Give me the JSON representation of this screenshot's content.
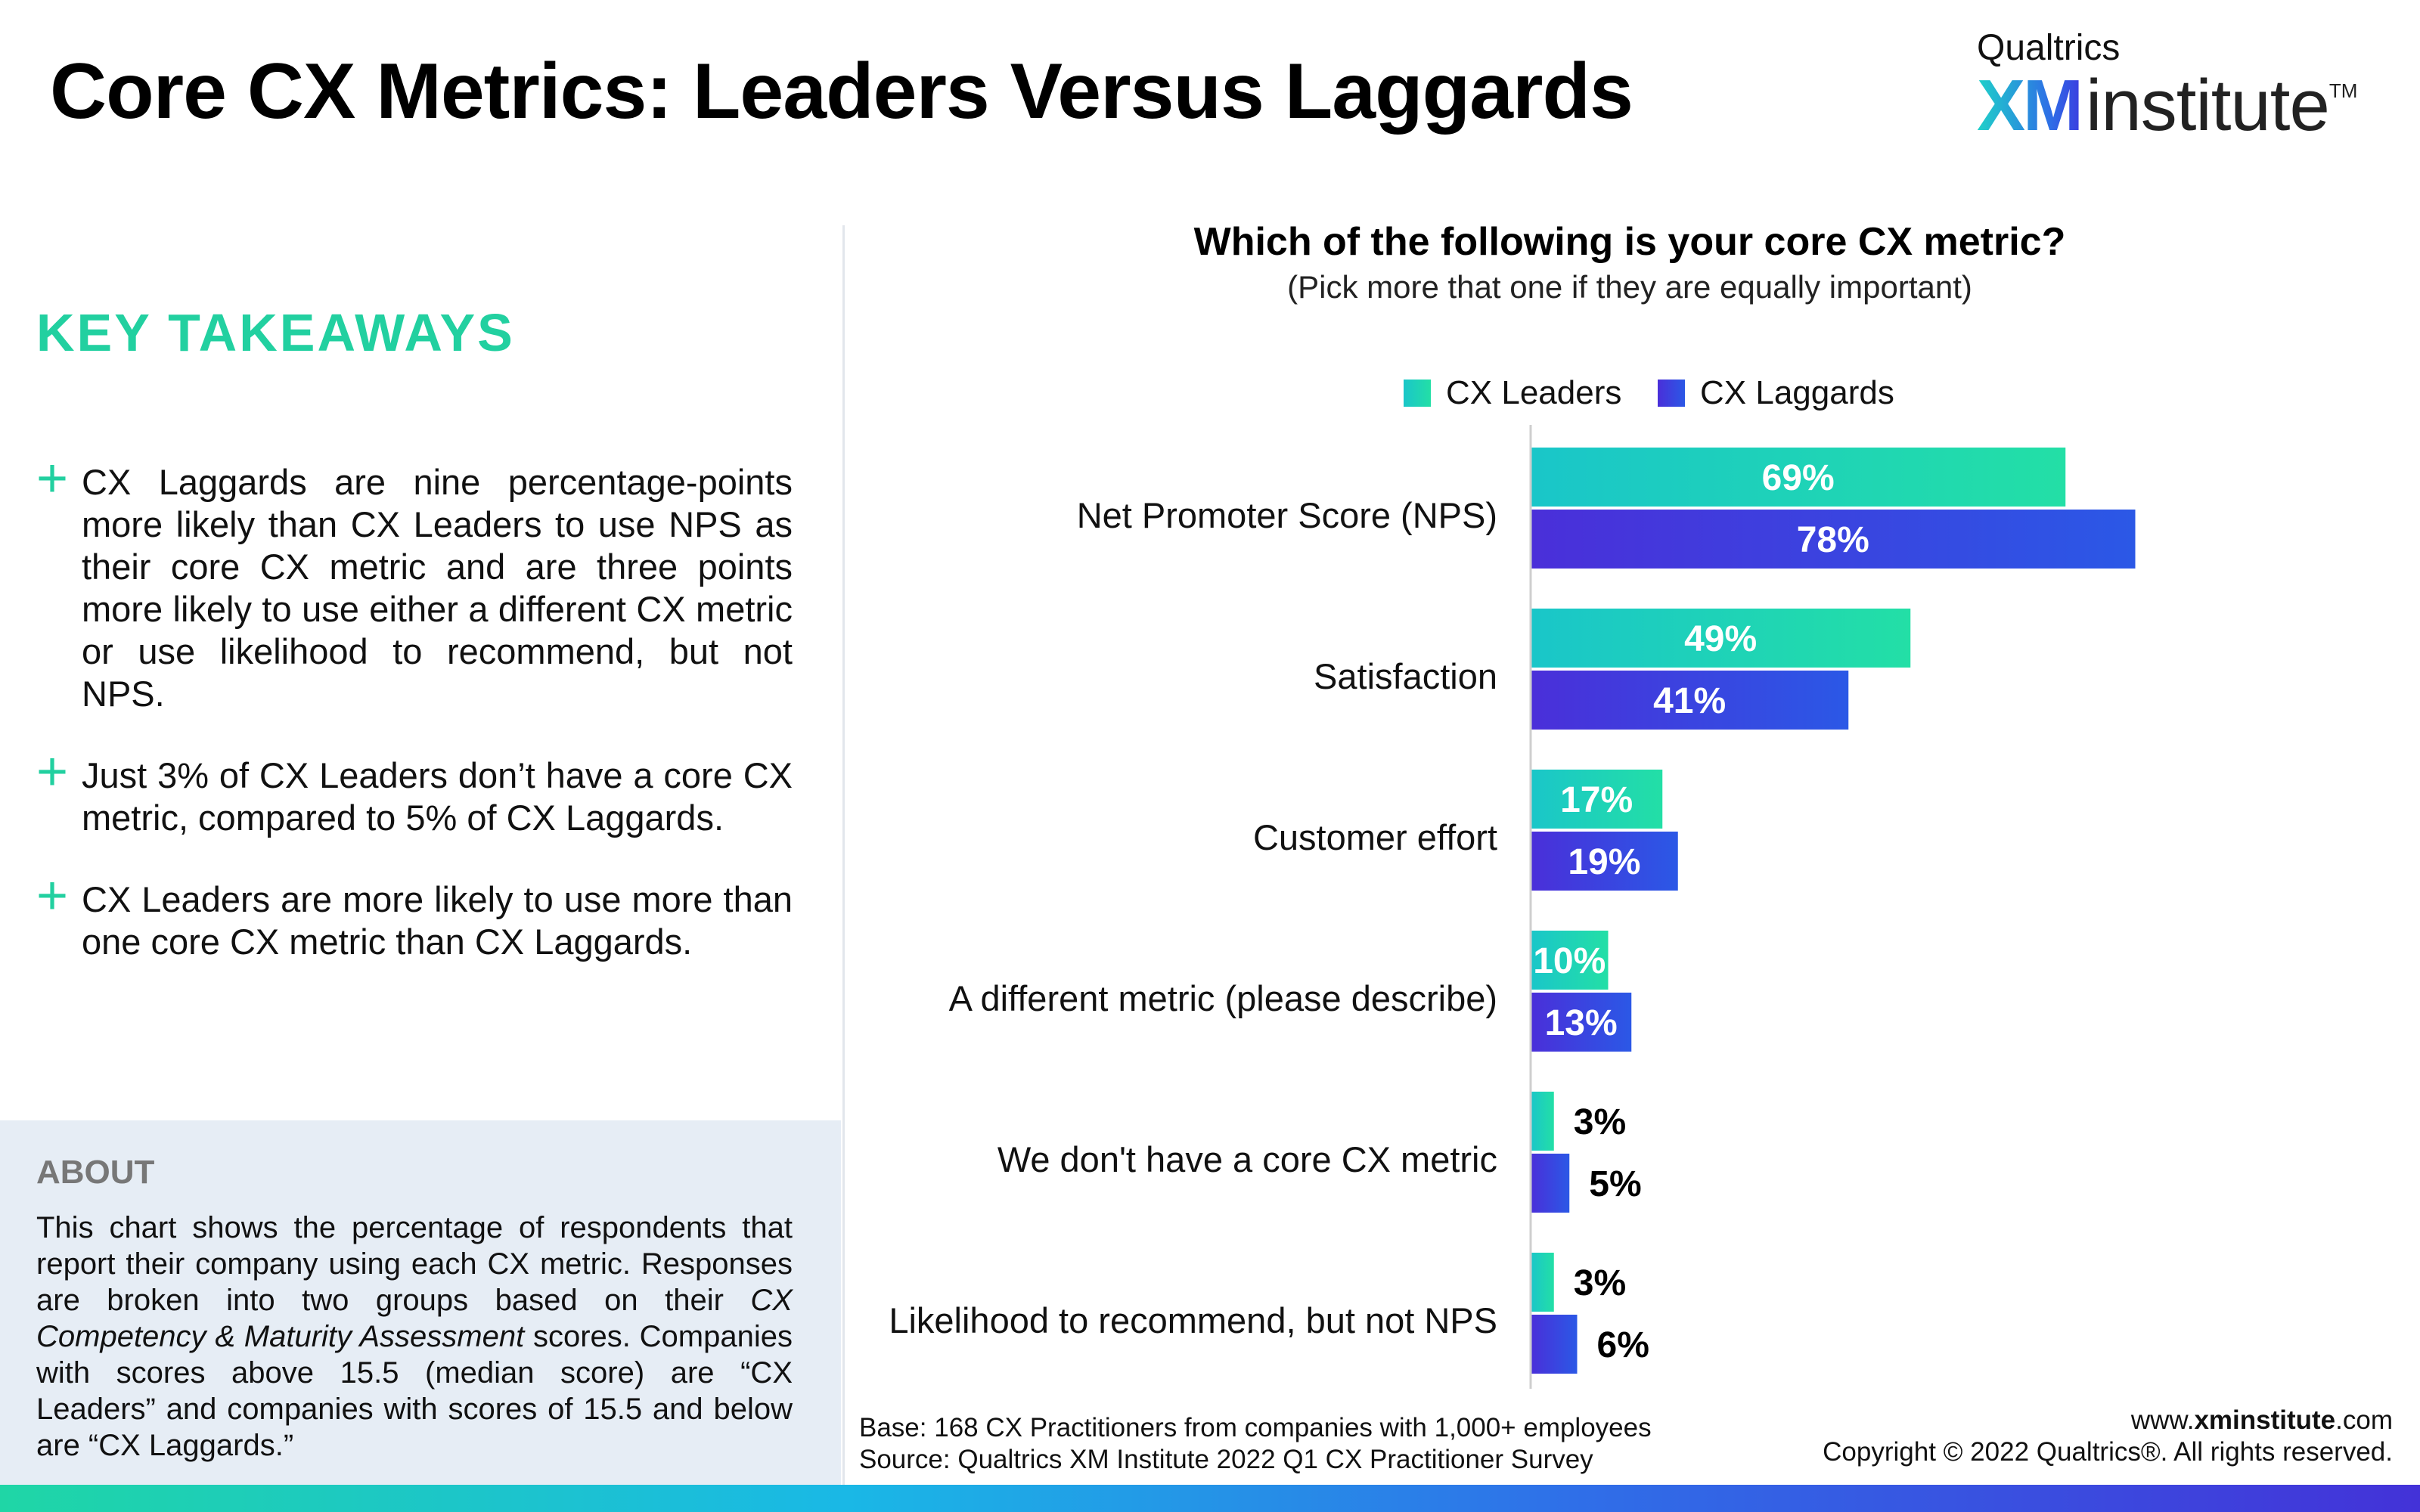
{
  "header": {
    "title": "Core CX Metrics: Leaders Versus Laggards",
    "brand_top": "Qualtrics",
    "brand_xm": "XM",
    "brand_institute": "institute",
    "brand_tm": "TM"
  },
  "takeaways": {
    "title": "KEY TAKEAWAYS",
    "items": [
      "CX Laggards are nine percentage-points more likely than CX Leaders to use NPS as their core CX metric and are three points more likely to use either a different CX metric or use likelihood to recommend, but not NPS.",
      "Just 3% of CX Leaders don’t have a core CX metric, compared to 5% of CX Laggards.",
      "CX Leaders are more likely to use more than one core CX metric than CX Laggards."
    ]
  },
  "about": {
    "title": "ABOUT",
    "text_1": "This chart shows the percentage of respondents that report their company using each CX metric. Responses are broken into two groups based on their ",
    "text_em": "CX Competency & Maturity Assessment",
    "text_2": " scores. Companies with scores above 15.5 (median score) are “CX Leaders” and companies with scores of 15.5 and below are “CX Laggards.”"
  },
  "chart_data": {
    "type": "bar",
    "orientation": "horizontal",
    "title": "Which of the following is your core CX metric?",
    "subtitle": "(Pick more that one if they are equally important)",
    "categories": [
      "Net Promoter Score (NPS)",
      "Satisfaction",
      "Customer effort",
      "A different metric (please describe)",
      "We don't have a core CX metric",
      "Likelihood to recommend, but not NPS"
    ],
    "series": [
      {
        "name": "CX Leaders",
        "values": [
          69,
          49,
          17,
          10,
          3,
          3
        ],
        "color_start": "#1ac6c9",
        "color_end": "#23dfa6"
      },
      {
        "name": "CX Laggards",
        "values": [
          78,
          41,
          19,
          13,
          5,
          6
        ],
        "color_start": "#4a2fd9",
        "color_end": "#2b58e6"
      }
    ],
    "value_suffix": "%",
    "xlim": [
      0,
      100
    ],
    "legend_position": "top",
    "grid": false
  },
  "footer": {
    "base": "Base: 168 CX Practitioners from companies with 1,000+ employees",
    "source": "Source: Qualtrics XM Institute 2022 Q1 CX Practitioner Survey",
    "url_prefix": "www.",
    "url_bold": "xminstitute",
    "url_suffix": ".com",
    "copyright": "Copyright © 2022 Qualtrics®. All rights reserved."
  }
}
